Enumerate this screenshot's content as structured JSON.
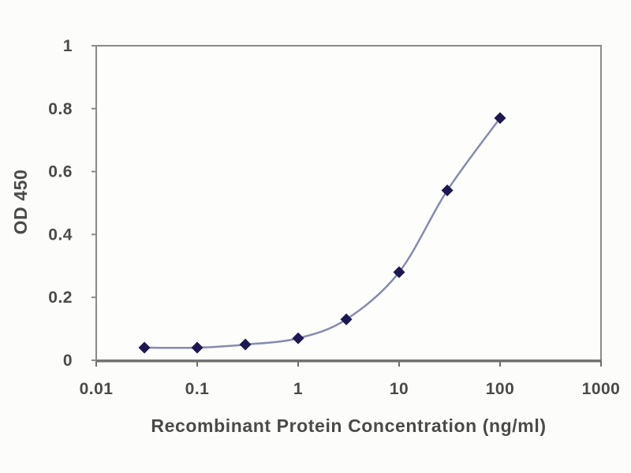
{
  "chart_data": {
    "type": "line",
    "title": "",
    "xlabel": "Recombinant Protein Concentration (ng/ml)",
    "ylabel": "OD 450",
    "x_scale": "log",
    "y_scale": "linear",
    "xlim": [
      0.01,
      1000
    ],
    "ylim": [
      0,
      1
    ],
    "x_ticks": [
      "0.01",
      "0.1",
      "1",
      "10",
      "100",
      "1000"
    ],
    "y_ticks": [
      "0",
      "0.2",
      "0.4",
      "0.6",
      "0.8",
      "1"
    ],
    "grid": "horizontal",
    "legend": "none",
    "marker": "diamond",
    "series": [
      {
        "name": "OD 450",
        "x": [
          0.03,
          0.1,
          0.3,
          1,
          3,
          10,
          30,
          100
        ],
        "values": [
          0.04,
          0.04,
          0.05,
          0.07,
          0.13,
          0.28,
          0.54,
          0.77
        ]
      }
    ],
    "colors": {
      "background": "#fcfcfa",
      "plot_background": "#fdfdfc",
      "grid": "#999999",
      "border": "#8a8a8a",
      "axis": "#6f6f6f",
      "line": "#868bb0",
      "marker": "#1d1852",
      "text": "#4a4a4a"
    }
  }
}
